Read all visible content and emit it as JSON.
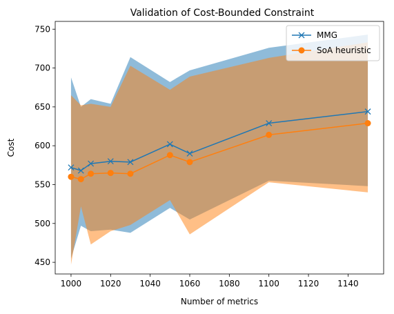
{
  "chart_data": {
    "type": "line",
    "title": "Validation of Cost-Bounded Constraint",
    "xlabel": "Number of metrics",
    "ylabel": "Cost",
    "xlim": [
      992,
      1158
    ],
    "ylim": [
      435,
      760
    ],
    "x_ticks": [
      1000,
      1020,
      1040,
      1060,
      1080,
      1100,
      1120,
      1140
    ],
    "y_ticks": [
      450,
      500,
      550,
      600,
      650,
      700,
      750
    ],
    "grid": false,
    "legend_position": "top-right",
    "x": [
      1000,
      1005,
      1010,
      1020,
      1030,
      1050,
      1060,
      1100,
      1150
    ],
    "series": [
      {
        "name": "MMG",
        "marker": "x",
        "color": "#1f77b4",
        "band_color": "#1f77b4",
        "band_opacity": 0.5,
        "values": [
          572,
          568,
          577,
          580,
          579,
          602,
          590,
          629,
          644
        ],
        "band_upper": [
          688,
          650,
          660,
          654,
          714,
          682,
          697,
          726,
          743
        ],
        "band_lower": [
          455,
          497,
          490,
          492,
          488,
          520,
          505,
          555,
          548
        ]
      },
      {
        "name": "SoA heuristic",
        "marker": "o",
        "color": "#ff7f0e",
        "band_color": "#ff7f0e",
        "band_opacity": 0.5,
        "values": [
          560,
          557,
          564,
          565,
          564,
          588,
          579,
          614,
          629
        ],
        "band_upper": [
          665,
          652,
          654,
          650,
          703,
          672,
          689,
          713,
          733
        ],
        "band_lower": [
          447,
          522,
          473,
          490,
          498,
          530,
          486,
          553,
          540
        ]
      }
    ]
  }
}
